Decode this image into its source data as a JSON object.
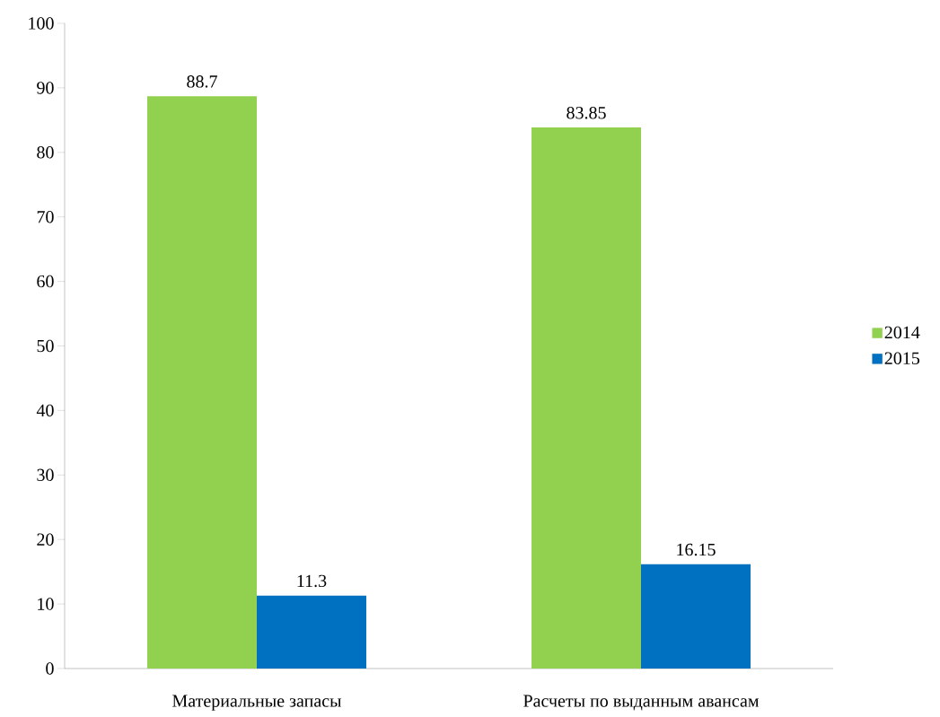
{
  "chart_data": {
    "type": "bar",
    "categories": [
      "Материальные запасы",
      "Расчеты по выданным авансам"
    ],
    "series": [
      {
        "name": "2014",
        "color": "#92d050",
        "values": [
          88.7,
          83.85
        ],
        "value_labels": [
          "88.7",
          "83.85"
        ]
      },
      {
        "name": "2015",
        "color": "#0070c0",
        "values": [
          11.3,
          16.15
        ],
        "value_labels": [
          "11.3",
          "16.15"
        ]
      }
    ],
    "ylim": [
      0,
      100
    ],
    "yticks": [
      0,
      10,
      20,
      30,
      40,
      50,
      60,
      70,
      80,
      90,
      100
    ],
    "grid": false,
    "legend": "right"
  }
}
